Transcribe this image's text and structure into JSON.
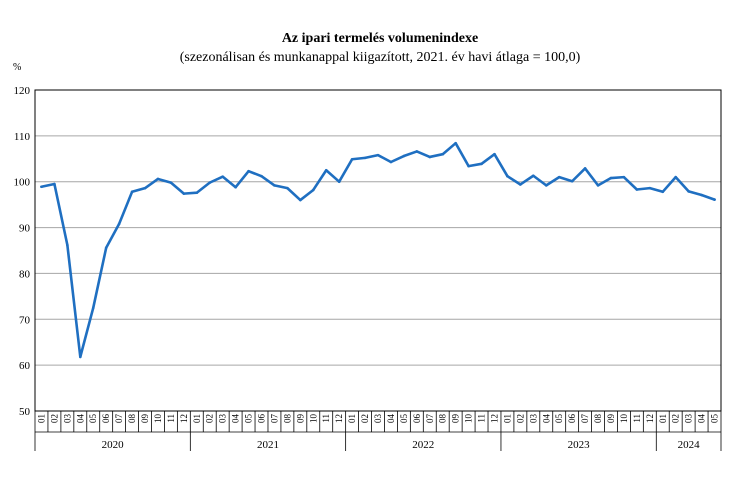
{
  "chart_data": {
    "type": "line",
    "title": "Az ipari termelés volumenindexe",
    "subtitle": "(szezonálisan és munkanappal kiigazított, 2021. év havi átlaga = 100,0)",
    "ylabel": "%",
    "xlabel": "",
    "ylim": [
      50,
      120
    ],
    "yticks": [
      50,
      60,
      70,
      80,
      90,
      100,
      110,
      120
    ],
    "grid": true,
    "color": "#1f6fc1",
    "month_labels": [
      "01",
      "02",
      "03",
      "04",
      "05",
      "06",
      "07",
      "08",
      "09",
      "10",
      "11",
      "12",
      "01",
      "02",
      "03",
      "04",
      "05",
      "06",
      "07",
      "08",
      "09",
      "10",
      "11",
      "12",
      "01",
      "02",
      "03",
      "04",
      "05",
      "06",
      "07",
      "08",
      "09",
      "10",
      "11",
      "12",
      "01",
      "02",
      "03",
      "04",
      "05",
      "06",
      "07",
      "08",
      "09",
      "10",
      "11",
      "12",
      "01",
      "02",
      "03",
      "04",
      "05"
    ],
    "years": [
      {
        "label": "2020",
        "months": 12
      },
      {
        "label": "2021",
        "months": 12
      },
      {
        "label": "2022",
        "months": 12
      },
      {
        "label": "2023",
        "months": 12
      },
      {
        "label": "2024",
        "months": 5
      }
    ],
    "values": [
      98.9,
      99.5,
      86.2,
      61.8,
      72.5,
      85.6,
      90.8,
      97.8,
      98.6,
      100.6,
      99.8,
      97.4,
      97.6,
      99.8,
      101.1,
      98.8,
      102.3,
      101.2,
      99.2,
      98.6,
      96.0,
      98.2,
      102.5,
      100.0,
      104.9,
      105.2,
      105.8,
      104.3,
      105.6,
      106.6,
      105.4,
      106.0,
      108.4,
      103.4,
      103.9,
      106.0,
      101.2,
      99.4,
      101.3,
      99.2,
      101.0,
      100.1,
      102.9,
      99.2,
      100.8,
      101.0,
      98.3,
      98.6,
      97.8,
      101.0,
      97.9,
      97.1,
      96.1
    ]
  }
}
